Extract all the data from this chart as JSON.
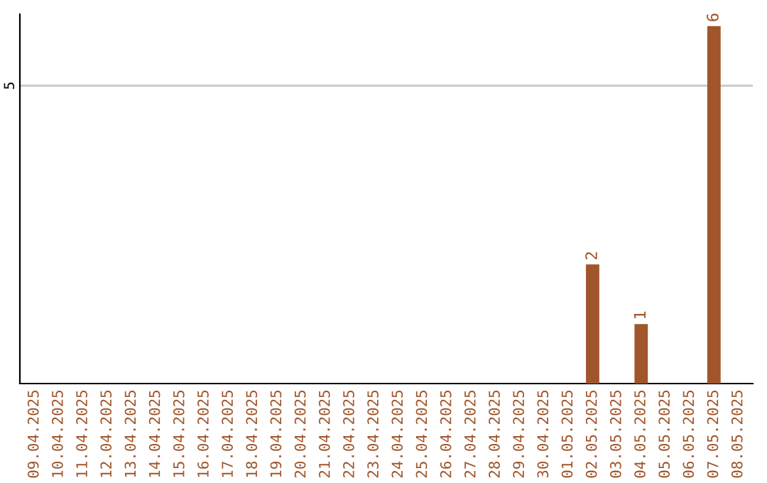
{
  "chart_data": {
    "type": "bar",
    "categories": [
      "09.04.2025",
      "10.04.2025",
      "11.04.2025",
      "12.04.2025",
      "13.04.2025",
      "14.04.2025",
      "15.04.2025",
      "16.04.2025",
      "17.04.2025",
      "18.04.2025",
      "19.04.2025",
      "20.04.2025",
      "21.04.2025",
      "22.04.2025",
      "23.04.2025",
      "24.04.2025",
      "25.04.2025",
      "26.04.2025",
      "27.04.2025",
      "28.04.2025",
      "29.04.2025",
      "30.04.2025",
      "01.05.2025",
      "02.05.2025",
      "03.05.2025",
      "04.05.2025",
      "05.05.2025",
      "06.05.2025",
      "07.05.2025",
      "08.05.2025"
    ],
    "values": [
      null,
      null,
      null,
      null,
      null,
      null,
      null,
      null,
      null,
      null,
      null,
      null,
      null,
      null,
      null,
      null,
      null,
      null,
      null,
      null,
      null,
      null,
      null,
      2,
      null,
      1,
      null,
      null,
      6,
      null
    ],
    "data_labels": true,
    "color": "#a0562a",
    "ylim": [
      0,
      6.2
    ],
    "ref_lines": [
      {
        "axis": "y",
        "value": 5,
        "label": "5",
        "color": "#c8c8c8"
      }
    ]
  }
}
